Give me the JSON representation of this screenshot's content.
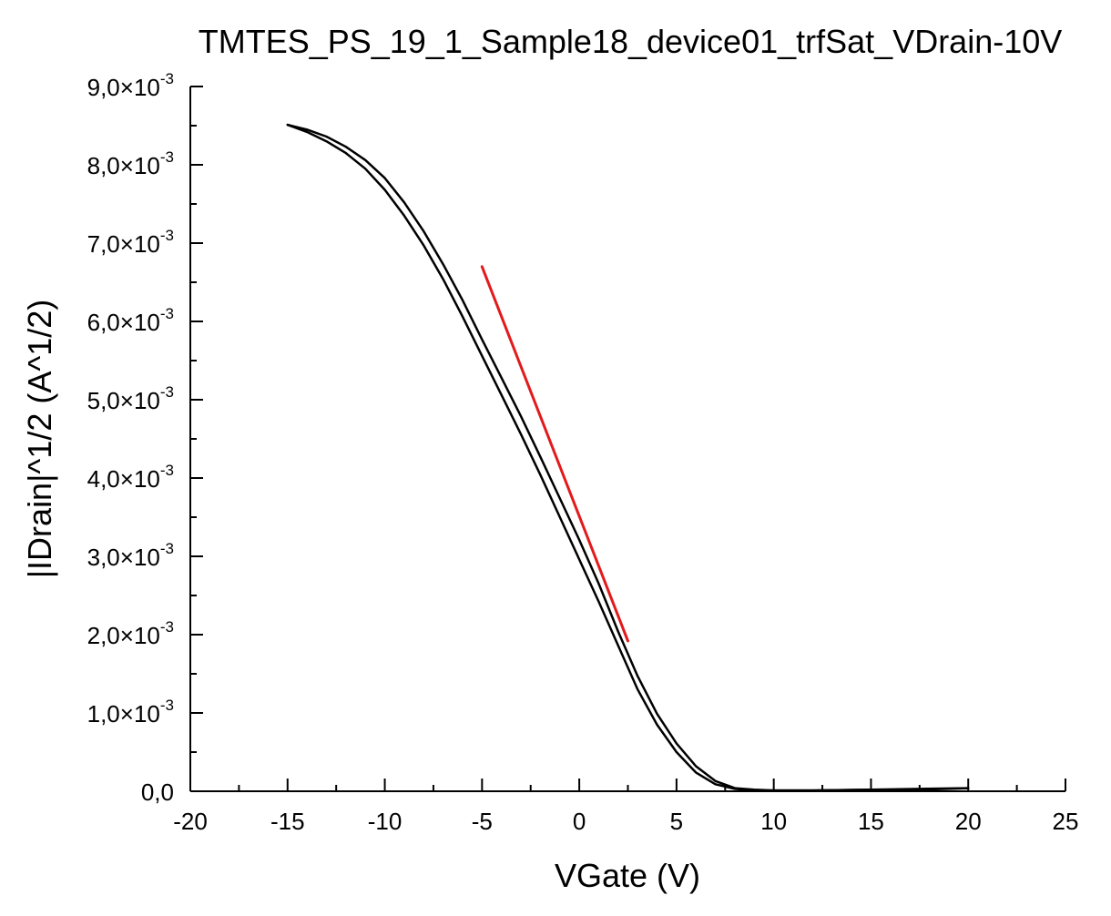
{
  "chart_data": {
    "type": "line",
    "title": "TMTES_PS_19_1_Sample18_device01_trfSat_VDrain-10V",
    "xlabel": "VGate (V)",
    "ylabel": "|IDrain|^1/2 (A^1/2)",
    "xlim": [
      -20,
      25
    ],
    "ylim": [
      0,
      0.009
    ],
    "xticks": [
      -20,
      -15,
      -10,
      -5,
      0,
      5,
      10,
      15,
      20,
      25
    ],
    "xtick_labels": [
      "-20",
      "-15",
      "-10",
      "-5",
      "0",
      "5",
      "10",
      "15",
      "20",
      "25"
    ],
    "yticks": [
      0,
      0.001,
      0.002,
      0.003,
      0.004,
      0.005,
      0.006,
      0.007,
      0.008,
      0.009
    ],
    "ytick_labels": [
      {
        "mantissa": "0,0",
        "exponent": ""
      },
      {
        "mantissa": "1,0×10",
        "exponent": "-3"
      },
      {
        "mantissa": "2,0×10",
        "exponent": "-3"
      },
      {
        "mantissa": "3,0×10",
        "exponent": "-3"
      },
      {
        "mantissa": "4,0×10",
        "exponent": "-3"
      },
      {
        "mantissa": "5,0×10",
        "exponent": "-3"
      },
      {
        "mantissa": "6,0×10",
        "exponent": "-3"
      },
      {
        "mantissa": "7,0×10",
        "exponent": "-3"
      },
      {
        "mantissa": "8,0×10",
        "exponent": "-3"
      },
      {
        "mantissa": "9,0×10",
        "exponent": "-3"
      }
    ],
    "grid": false,
    "series": [
      {
        "color": "#000000",
        "x": [
          -15,
          -14,
          -13,
          -12,
          -11,
          -10,
          -9,
          -8,
          -7,
          -6,
          -5,
          -4,
          -3,
          -2,
          -1,
          0,
          1,
          2,
          3,
          4,
          5,
          6,
          7,
          8,
          9,
          10,
          12,
          15,
          17.5,
          20
        ],
        "y": [
          0.00851,
          0.00842,
          0.0083,
          0.00815,
          0.00795,
          0.00768,
          0.00735,
          0.00697,
          0.00654,
          0.00606,
          0.00556,
          0.00506,
          0.00456,
          0.00404,
          0.0035,
          0.00296,
          0.00242,
          0.00186,
          0.0013,
          0.00085,
          0.0005,
          0.00024,
          9e-05,
          3e-05,
          1e-05,
          1e-05,
          1e-05,
          2e-05,
          2e-05,
          4e-05
        ]
      },
      {
        "color": "#000000",
        "x": [
          -15,
          -14,
          -13,
          -12,
          -11,
          -10,
          -9,
          -8,
          -7,
          -6,
          -5,
          -4,
          -3,
          -2,
          -1,
          0,
          1,
          2,
          3,
          4,
          5,
          6,
          7,
          8,
          9,
          10,
          12,
          15,
          17.5,
          20
        ],
        "y": [
          0.00851,
          0.00845,
          0.00836,
          0.00823,
          0.00806,
          0.00783,
          0.00752,
          0.00715,
          0.00673,
          0.00627,
          0.00577,
          0.00528,
          0.00479,
          0.00427,
          0.00374,
          0.00321,
          0.00265,
          0.00204,
          0.00147,
          0.00099,
          0.00061,
          0.00032,
          0.00013,
          4e-05,
          2e-05,
          1e-05,
          1e-05,
          2e-05,
          3e-05,
          4e-05
        ]
      },
      {
        "color": "#e31a1c",
        "x": [
          -5,
          2.5
        ],
        "y": [
          0.0067,
          0.00192
        ]
      }
    ]
  }
}
